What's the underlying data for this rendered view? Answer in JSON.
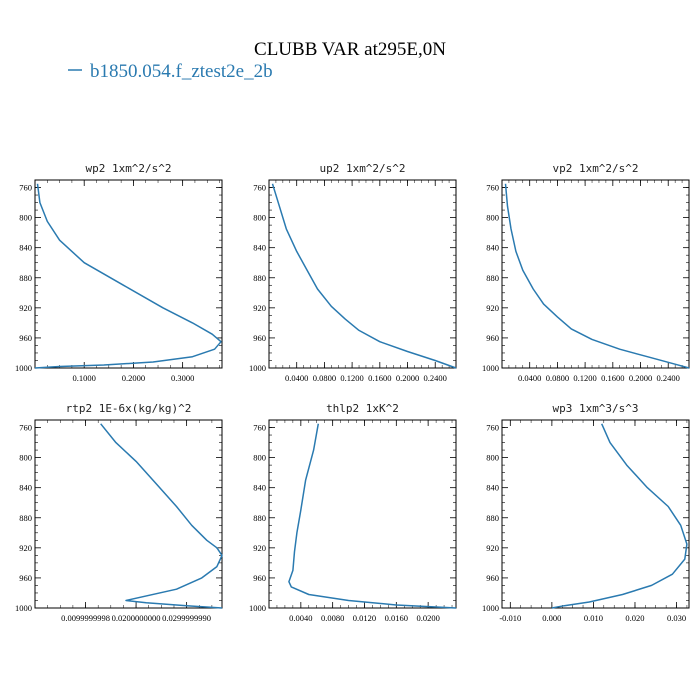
{
  "figure": {
    "title": "CLUBB VAR at295E,0N",
    "legend": {
      "label": "b1850.054.f_ztest2e_2b",
      "color": "#2a7ab0"
    }
  },
  "chart_data": [
    {
      "type": "line",
      "title": "wp2  1xm^2/s^2",
      "ylim": [
        1000,
        750
      ],
      "yticks": [
        760,
        800,
        840,
        880,
        920,
        960,
        1000
      ],
      "ytick_labels": [
        "760",
        "800",
        "840",
        "880",
        "920",
        "960",
        "1000"
      ],
      "xlim": [
        0.0,
        0.38
      ],
      "xticks": [
        0.1,
        0.2,
        0.3
      ],
      "xtick_labels": [
        "0.1000",
        "0.2000",
        "0.3000"
      ],
      "series": [
        {
          "color": "#2a7ab0",
          "x": [
            0.005,
            0.01,
            0.025,
            0.05,
            0.1,
            0.18,
            0.26,
            0.32,
            0.36,
            0.378,
            0.365,
            0.32,
            0.24,
            0.14,
            0.05,
            0.0
          ],
          "y": [
            755,
            780,
            805,
            830,
            860,
            890,
            920,
            940,
            955,
            965,
            975,
            985,
            992,
            996,
            998,
            1000
          ]
        }
      ]
    },
    {
      "type": "line",
      "title": "up2  1xm^2/s^2",
      "ylim": [
        1000,
        750
      ],
      "yticks": [
        760,
        800,
        840,
        880,
        920,
        960,
        1000
      ],
      "ytick_labels": [
        "760",
        "800",
        "840",
        "880",
        "920",
        "960",
        "1000"
      ],
      "xlim": [
        0.0,
        0.27
      ],
      "xticks": [
        0.04,
        0.08,
        0.12,
        0.16,
        0.2,
        0.24
      ],
      "xtick_labels": [
        "0.0400",
        "0.0800",
        "0.1200",
        "0.1600",
        "0.2000",
        "0.2400"
      ],
      "series": [
        {
          "color": "#2a7ab0",
          "x": [
            0.005,
            0.015,
            0.025,
            0.04,
            0.055,
            0.07,
            0.09,
            0.11,
            0.13,
            0.16,
            0.2,
            0.24,
            0.27
          ],
          "y": [
            755,
            785,
            815,
            845,
            870,
            895,
            918,
            935,
            950,
            965,
            978,
            990,
            1000
          ]
        }
      ]
    },
    {
      "type": "line",
      "title": "vp2  1xm^2/s^2",
      "ylim": [
        1000,
        750
      ],
      "yticks": [
        760,
        800,
        840,
        880,
        920,
        960,
        1000
      ],
      "ytick_labels": [
        "760",
        "800",
        "840",
        "880",
        "920",
        "960",
        "1000"
      ],
      "xlim": [
        0.0,
        0.27
      ],
      "xticks": [
        0.04,
        0.08,
        0.12,
        0.16,
        0.2,
        0.24
      ],
      "xtick_labels": [
        "0.0400",
        "0.0800",
        "0.1200",
        "0.1600",
        "0.2000",
        "0.2400"
      ],
      "series": [
        {
          "color": "#2a7ab0",
          "x": [
            0.005,
            0.008,
            0.013,
            0.02,
            0.03,
            0.045,
            0.06,
            0.08,
            0.1,
            0.13,
            0.17,
            0.21,
            0.25,
            0.27
          ],
          "y": [
            755,
            785,
            815,
            845,
            870,
            895,
            915,
            932,
            948,
            962,
            975,
            985,
            995,
            1000
          ]
        }
      ]
    },
    {
      "type": "line",
      "title": "rtp2  1E-6x(kg/kg)^2",
      "ylim": [
        1000,
        750
      ],
      "yticks": [
        760,
        800,
        840,
        880,
        920,
        960,
        1000
      ],
      "ytick_labels": [
        "760",
        "800",
        "840",
        "880",
        "920",
        "960",
        "1000"
      ],
      "xlim": [
        0.0,
        0.037
      ],
      "xticks": [
        0.01,
        0.02,
        0.03
      ],
      "xtick_labels": [
        "0.0099999998",
        "0.0200000000",
        "0.0299999990"
      ],
      "series": [
        {
          "color": "#2a7ab0",
          "x": [
            0.013,
            0.016,
            0.02,
            0.024,
            0.028,
            0.031,
            0.034,
            0.036,
            0.037,
            0.036,
            0.033,
            0.028,
            0.018,
            0.022,
            0.03,
            0.037
          ],
          "y": [
            755,
            780,
            805,
            835,
            865,
            890,
            910,
            920,
            930,
            945,
            960,
            975,
            990,
            993,
            997,
            1000
          ]
        }
      ]
    },
    {
      "type": "line",
      "title": "thlp2  1xK^2",
      "ylim": [
        1000,
        750
      ],
      "yticks": [
        760,
        800,
        840,
        880,
        920,
        960,
        1000
      ],
      "ytick_labels": [
        "760",
        "800",
        "840",
        "880",
        "920",
        "960",
        "1000"
      ],
      "xlim": [
        0.0,
        0.0235
      ],
      "xticks": [
        0.004,
        0.008,
        0.012,
        0.016,
        0.02
      ],
      "xtick_labels": [
        "0.0040",
        "0.0080",
        "0.0120",
        "0.0160",
        "0.0200"
      ],
      "series": [
        {
          "color": "#2a7ab0",
          "x": [
            0.0062,
            0.0056,
            0.0046,
            0.004,
            0.0035,
            0.0032,
            0.003,
            0.0025,
            0.0028,
            0.005,
            0.01,
            0.016,
            0.0235
          ],
          "y": [
            755,
            790,
            830,
            870,
            900,
            925,
            950,
            965,
            972,
            982,
            990,
            996,
            1000
          ]
        }
      ]
    },
    {
      "type": "line",
      "title": "wp3  1xm^3/s^3",
      "ylim": [
        1000,
        750
      ],
      "yticks": [
        760,
        800,
        840,
        880,
        920,
        960,
        1000
      ],
      "ytick_labels": [
        "760",
        "800",
        "840",
        "880",
        "920",
        "960",
        "1000"
      ],
      "xlim": [
        -0.012,
        0.033
      ],
      "xticks": [
        -0.01,
        0.0,
        0.01,
        0.02,
        0.03
      ],
      "xtick_labels": [
        "-0.010",
        "0.000",
        "0.010",
        "0.020",
        "0.030"
      ],
      "series": [
        {
          "color": "#2a7ab0",
          "x": [
            0.012,
            0.014,
            0.018,
            0.023,
            0.028,
            0.031,
            0.0325,
            0.032,
            0.029,
            0.024,
            0.017,
            0.009,
            0.003,
            0.0
          ],
          "y": [
            755,
            780,
            810,
            840,
            865,
            890,
            915,
            935,
            955,
            970,
            982,
            992,
            997,
            1000
          ]
        }
      ]
    }
  ]
}
